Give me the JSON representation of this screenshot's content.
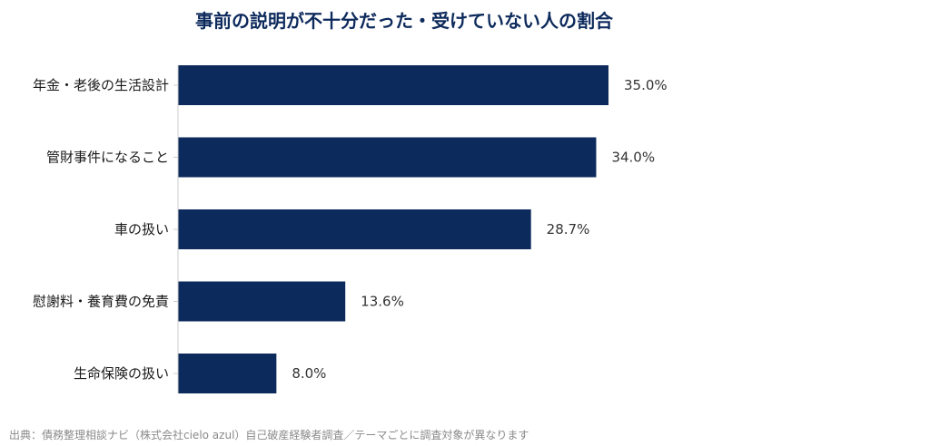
{
  "chart_data": {
    "type": "bar",
    "orientation": "horizontal",
    "title": "事前の説明が不十分だった・受けていない人の割合",
    "categories": [
      "年金・老後の生活設計",
      "管財事件になること",
      "車の扱い",
      "慰謝料・養育費の免責",
      "生命保険の扱い"
    ],
    "values": [
      35.0,
      34.0,
      28.7,
      13.6,
      8.0
    ],
    "value_labels": [
      "35.0%",
      "34.0%",
      "28.7%",
      "13.6%",
      "8.0%"
    ],
    "xlim": [
      0,
      35.0
    ],
    "grid": false,
    "bar_color": "#0d2a5c"
  },
  "source_note": "出典：債務整理相談ナビ（株式会社cielo azul）自己破産経験者調査／テーマごとに調査対象が異なります"
}
